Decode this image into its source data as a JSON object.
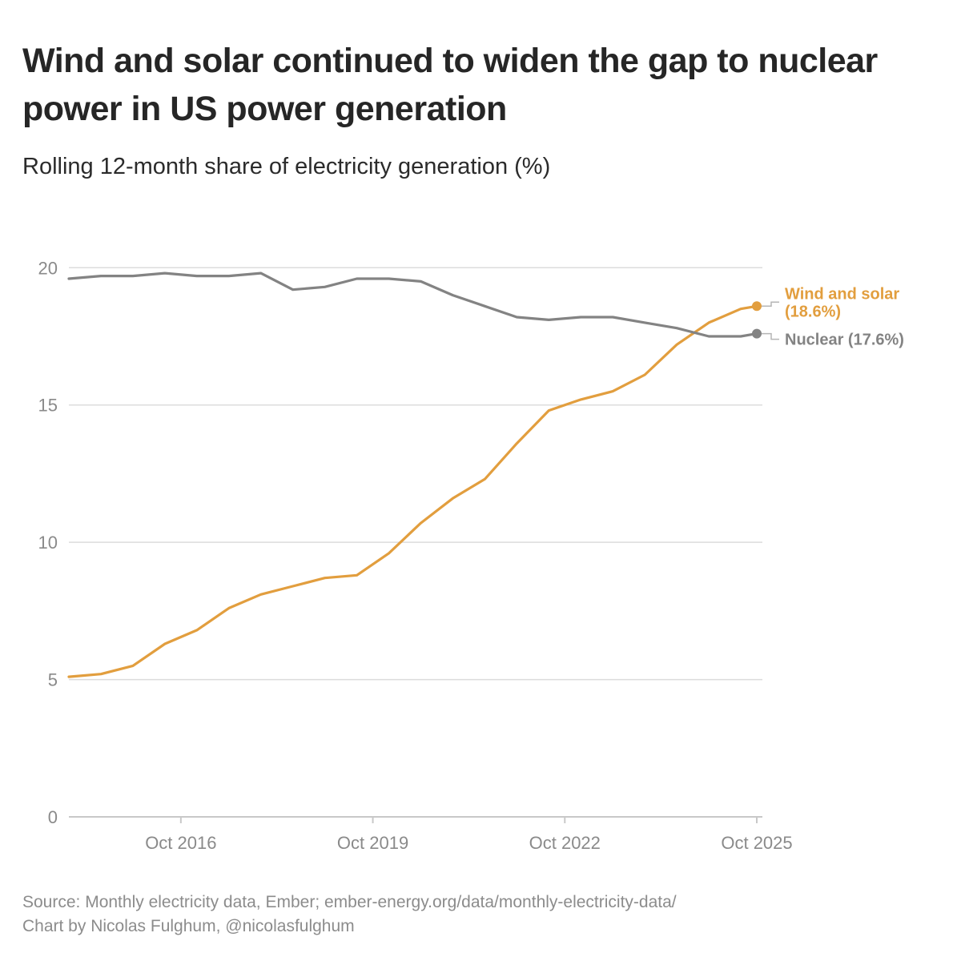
{
  "header": {
    "title": "Wind and solar continued to widen the gap to nuclear power in US power generation",
    "subtitle": "Rolling 12-month share of electricity generation (%)"
  },
  "footer": {
    "source_line1": "Source: Monthly electricity data, Ember; ember-energy.org/data/monthly-electricity-data/",
    "source_line2": "Chart by Nicolas Fulghum, @nicolasfulghum"
  },
  "chart_data": {
    "type": "line",
    "title": "Wind and solar continued to widen the gap to nuclear power in US power generation",
    "subtitle": "Rolling 12-month share of electricity generation (%)",
    "xlabel": "",
    "ylabel": "",
    "x_ticks": [
      "Oct 2016",
      "Oct 2019",
      "Oct 2022",
      "Oct 2025"
    ],
    "x_range": [
      "2015-01",
      "2025-10"
    ],
    "y_ticks": [
      0,
      5,
      10,
      15,
      20
    ],
    "ylim": [
      0,
      21
    ],
    "grid": "horizontal",
    "legend": "end-of-line labels",
    "series": [
      {
        "name": "Wind and solar",
        "end_label": "(18.6%)",
        "color": "#E29E3E",
        "x": [
          "2015-01",
          "2015-07",
          "2016-01",
          "2016-07",
          "2017-01",
          "2017-07",
          "2018-01",
          "2018-07",
          "2019-01",
          "2019-07",
          "2020-01",
          "2020-07",
          "2021-01",
          "2021-07",
          "2022-01",
          "2022-07",
          "2023-01",
          "2023-07",
          "2024-01",
          "2024-07",
          "2025-01",
          "2025-07",
          "2025-10"
        ],
        "values": [
          5.1,
          5.2,
          5.5,
          6.3,
          6.8,
          7.6,
          8.1,
          8.4,
          8.7,
          8.8,
          9.6,
          10.7,
          11.6,
          12.3,
          13.6,
          14.8,
          15.2,
          15.5,
          16.1,
          17.2,
          18.0,
          18.5,
          18.6
        ]
      },
      {
        "name": "Nuclear",
        "end_label": "(17.6%)",
        "color": "#838383",
        "x": [
          "2015-01",
          "2015-07",
          "2016-01",
          "2016-07",
          "2017-01",
          "2017-07",
          "2018-01",
          "2018-07",
          "2019-01",
          "2019-07",
          "2020-01",
          "2020-07",
          "2021-01",
          "2021-07",
          "2022-01",
          "2022-07",
          "2023-01",
          "2023-07",
          "2024-01",
          "2024-07",
          "2025-01",
          "2025-07",
          "2025-10"
        ],
        "values": [
          19.6,
          19.7,
          19.7,
          19.8,
          19.7,
          19.7,
          19.8,
          19.2,
          19.3,
          19.6,
          19.6,
          19.5,
          19.0,
          18.6,
          18.2,
          18.1,
          18.2,
          18.2,
          18.0,
          17.8,
          17.5,
          17.5,
          17.6
        ]
      }
    ]
  }
}
